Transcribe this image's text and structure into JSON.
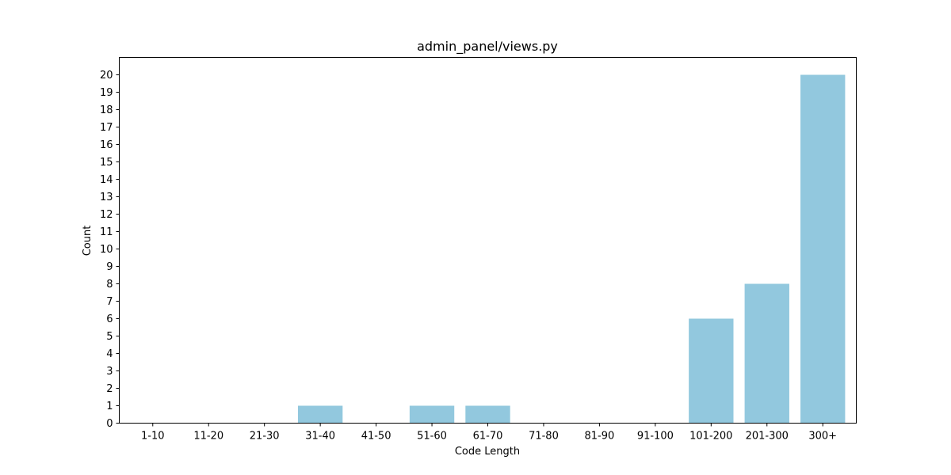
{
  "chart_data": {
    "type": "bar",
    "title": "admin_panel/views.py",
    "xlabel": "Code Length",
    "ylabel": "Count",
    "categories": [
      "1-10",
      "11-20",
      "21-30",
      "31-40",
      "41-50",
      "51-60",
      "61-70",
      "71-80",
      "81-90",
      "91-100",
      "101-200",
      "201-300",
      "300+"
    ],
    "values": [
      0,
      0,
      0,
      1,
      0,
      1,
      1,
      0,
      0,
      0,
      6,
      8,
      20
    ],
    "ylim": [
      0,
      21
    ],
    "yticks": [
      0,
      1,
      2,
      3,
      4,
      5,
      6,
      7,
      8,
      9,
      10,
      11,
      12,
      13,
      14,
      15,
      16,
      17,
      18,
      19,
      20
    ],
    "bar_color": "#92c8de",
    "grid": false,
    "legend": false
  }
}
